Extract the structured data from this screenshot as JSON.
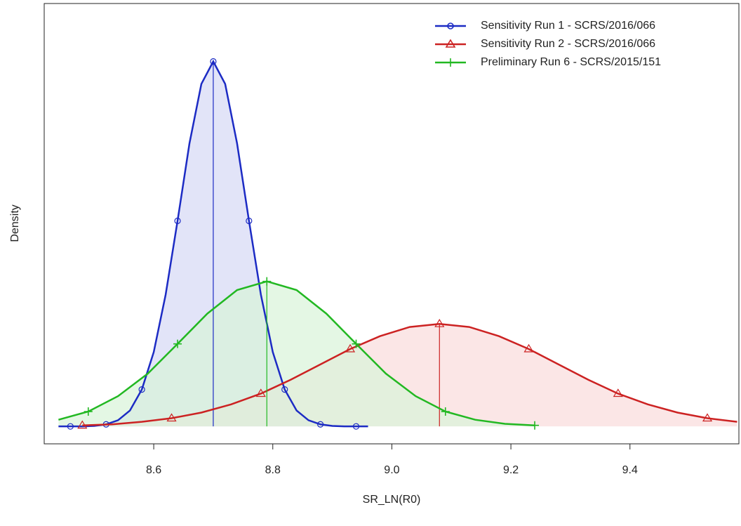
{
  "chart_data": {
    "type": "line",
    "x_label": "SR_LN(R0)",
    "y_label": "Density",
    "xlim": [
      8.416,
      9.583
    ],
    "ylim": [
      -0.34,
      8.25
    ],
    "xticks": [
      8.6,
      8.8,
      {
        "value": 9,
        "label": "9.0"
      },
      9.2,
      9.4
    ],
    "legend": "top-right",
    "series": [
      {
        "name": "Sensitivity Run 1 - SCRS/2016/066",
        "color": "#1c2bc4",
        "fill": "#d6d9f5",
        "marker": "circle",
        "x": [
          8.44,
          8.46,
          8.48,
          8.5,
          8.52,
          8.54,
          8.56,
          8.58,
          8.6,
          8.62,
          8.64,
          8.66,
          8.68,
          8.7,
          8.72,
          8.74,
          8.76,
          8.78,
          8.8,
          8.82,
          8.84,
          8.86,
          8.88,
          8.9,
          8.92,
          8.94,
          8.96
        ],
        "values": [
          0,
          0,
          0,
          0.01,
          0.04,
          0.12,
          0.31,
          0.72,
          1.45,
          2.57,
          4.01,
          5.52,
          6.68,
          7.12,
          6.68,
          5.52,
          4.01,
          2.57,
          1.45,
          0.72,
          0.31,
          0.12,
          0.04,
          0.01,
          0,
          0,
          0
        ]
      },
      {
        "name": "Sensitivity Run 2 - SCRS/2016/066",
        "color": "#cc2222",
        "fill": "#fadcdc",
        "marker": "triangle",
        "x": [
          8.48,
          8.53,
          8.58,
          8.63,
          8.68,
          8.73,
          8.78,
          8.83,
          8.88,
          8.93,
          8.98,
          9.03,
          9.08,
          9.13,
          9.18,
          9.23,
          9.28,
          9.33,
          9.38,
          9.43,
          9.48,
          9.53,
          9.58
        ],
        "values": [
          0.02,
          0.04,
          0.09,
          0.16,
          0.27,
          0.43,
          0.64,
          0.91,
          1.21,
          1.51,
          1.76,
          1.94,
          2.0,
          1.94,
          1.76,
          1.51,
          1.21,
          0.91,
          0.64,
          0.43,
          0.27,
          0.16,
          0.09
        ]
      },
      {
        "name": "Preliminary Run 6 - SCRS/2015/151",
        "color": "#22b822",
        "fill": "#d9f3d9",
        "marker": "plus",
        "x": [
          8.44,
          8.49,
          8.54,
          8.59,
          8.64,
          8.69,
          8.74,
          8.79,
          8.84,
          8.89,
          8.94,
          8.99,
          9.04,
          9.09,
          9.14,
          9.19,
          9.24
        ],
        "values": [
          0.13,
          0.29,
          0.59,
          1.03,
          1.61,
          2.2,
          2.66,
          2.83,
          2.66,
          2.2,
          1.61,
          1.03,
          0.59,
          0.29,
          0.13,
          0.05,
          0.02
        ]
      }
    ]
  }
}
